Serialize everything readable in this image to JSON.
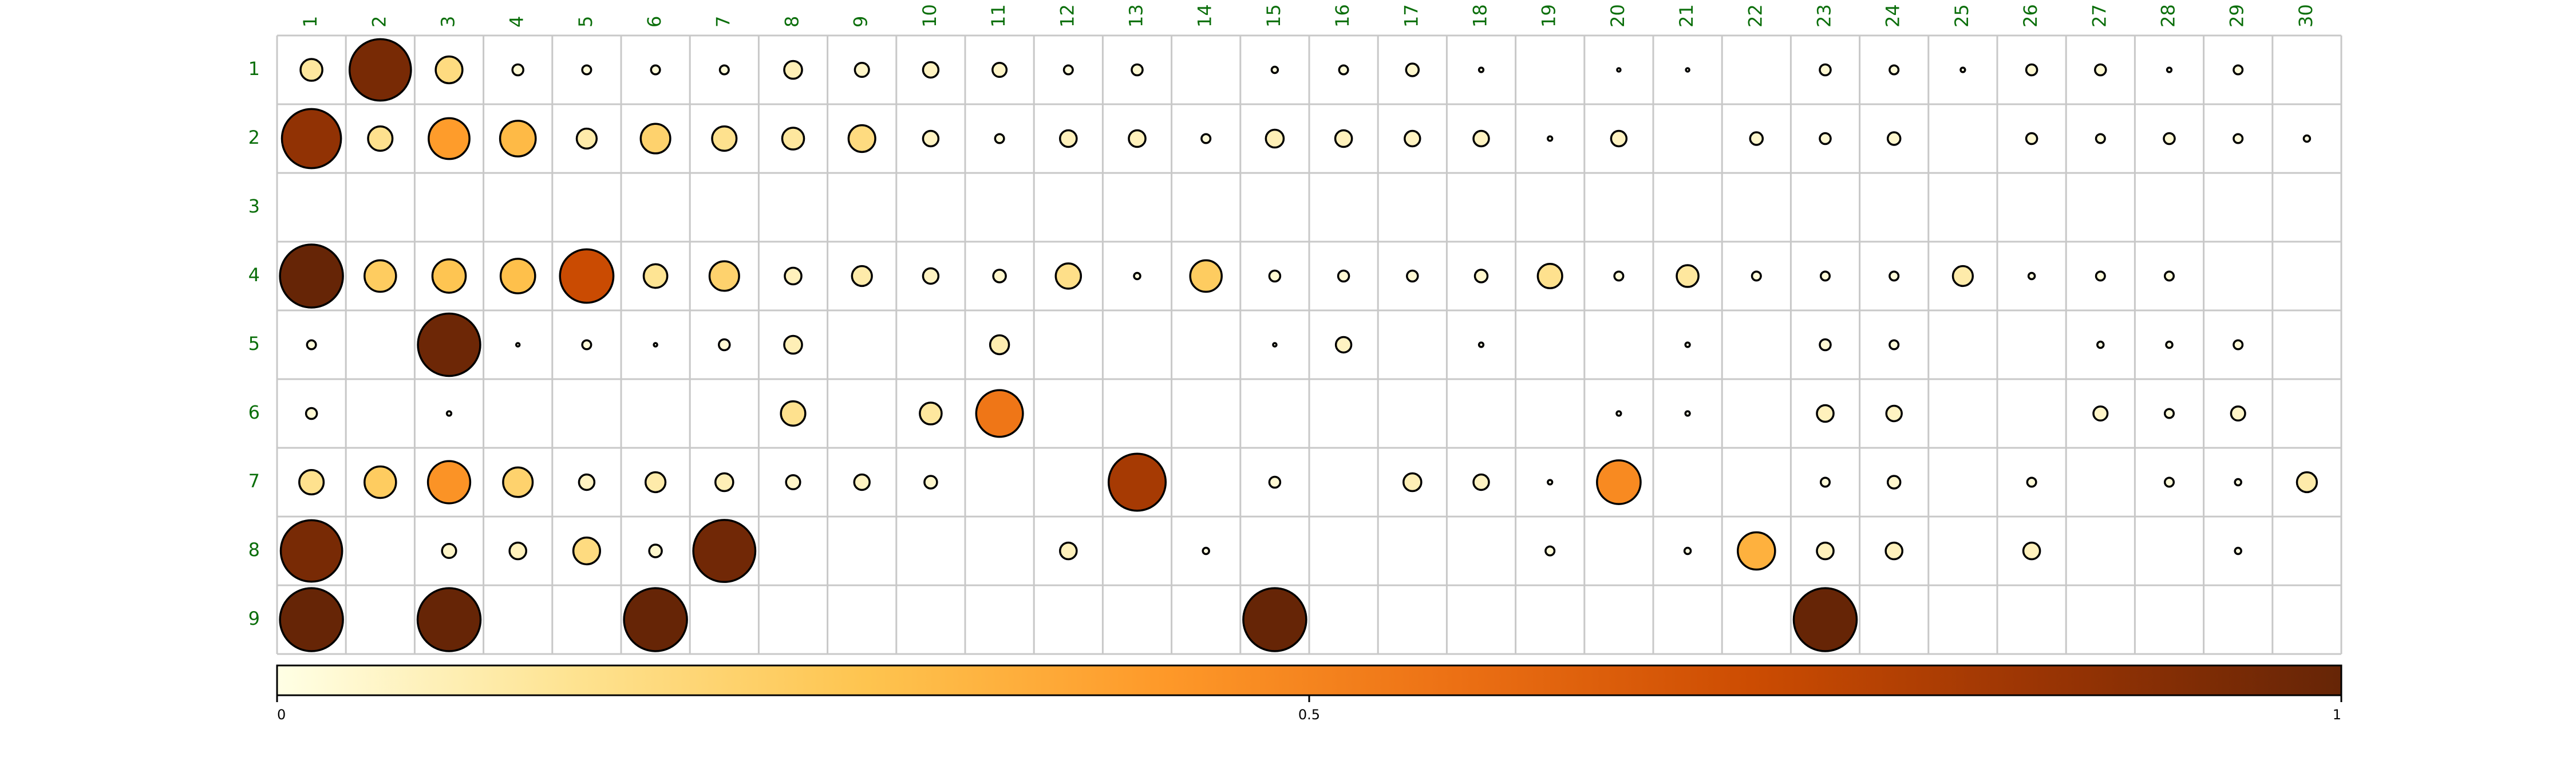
{
  "chart_data": {
    "type": "heatmap",
    "x_labels": [
      "1",
      "2",
      "3",
      "4",
      "5",
      "6",
      "7",
      "8",
      "9",
      "10",
      "11",
      "12",
      "13",
      "14",
      "15",
      "16",
      "17",
      "18",
      "19",
      "20",
      "21",
      "22",
      "23",
      "24",
      "25",
      "26",
      "27",
      "28",
      "29",
      "30"
    ],
    "y_labels": [
      "1",
      "2",
      "3",
      "4",
      "5",
      "6",
      "7",
      "8",
      "9"
    ],
    "values": [
      [
        0.12,
        0.95,
        0.18,
        0.03,
        0.02,
        0.02,
        0.02,
        0.08,
        0.05,
        0.06,
        0.05,
        0.02,
        0.03,
        null,
        0.01,
        0.02,
        0.04,
        0.005,
        null,
        0.003,
        0.003,
        null,
        0.03,
        0.02,
        0.005,
        0.03,
        0.03,
        0.005,
        0.02,
        null
      ],
      [
        0.88,
        0.15,
        0.42,
        0.32,
        0.1,
        0.22,
        0.15,
        0.12,
        0.18,
        0.06,
        0.02,
        0.07,
        0.07,
        0.02,
        0.08,
        0.07,
        0.06,
        0.06,
        0.005,
        0.06,
        null,
        0.04,
        0.03,
        0.04,
        null,
        0.03,
        0.02,
        0.03,
        0.02,
        0.01
      ],
      [
        null,
        null,
        null,
        null,
        null,
        null,
        null,
        null,
        null,
        null,
        null,
        null,
        null,
        null,
        null,
        null,
        null,
        null,
        null,
        null,
        null,
        null,
        null,
        null,
        null,
        null,
        null,
        null,
        null,
        null
      ],
      [
        1.0,
        0.25,
        0.28,
        0.3,
        0.72,
        0.14,
        0.22,
        0.07,
        0.1,
        0.06,
        0.04,
        0.16,
        0.01,
        0.25,
        0.03,
        0.03,
        0.03,
        0.04,
        0.15,
        0.02,
        0.12,
        0.02,
        0.02,
        0.02,
        0.1,
        0.01,
        0.02,
        0.02,
        null,
        null
      ],
      [
        0.02,
        null,
        0.98,
        0.003,
        0.02,
        0.003,
        0.03,
        0.08,
        null,
        null,
        0.09,
        null,
        null,
        null,
        0.003,
        0.06,
        null,
        0.005,
        null,
        null,
        0.005,
        null,
        0.03,
        0.02,
        null,
        null,
        0.01,
        0.01,
        0.02,
        null
      ],
      [
        0.03,
        null,
        0.005,
        null,
        null,
        null,
        null,
        0.15,
        null,
        0.12,
        0.55,
        null,
        null,
        null,
        null,
        null,
        null,
        null,
        null,
        0.005,
        0.005,
        null,
        0.07,
        0.06,
        null,
        null,
        0.05,
        0.02,
        0.05,
        null
      ],
      [
        0.15,
        0.25,
        0.45,
        0.22,
        0.06,
        0.1,
        0.08,
        0.05,
        0.06,
        0.04,
        null,
        null,
        0.82,
        null,
        0.03,
        null,
        0.08,
        0.06,
        0.005,
        0.48,
        null,
        null,
        0.02,
        0.04,
        null,
        0.02,
        null,
        0.02,
        0.01,
        0.1
      ],
      [
        0.95,
        null,
        0.05,
        0.07,
        0.18,
        0.04,
        0.97,
        null,
        null,
        null,
        null,
        0.07,
        null,
        0.01,
        null,
        null,
        null,
        null,
        0.02,
        null,
        0.01,
        0.35,
        0.07,
        0.07,
        null,
        0.07,
        null,
        null,
        0.01,
        null
      ],
      [
        1.0,
        null,
        1.0,
        null,
        null,
        1.0,
        null,
        null,
        null,
        null,
        null,
        null,
        null,
        null,
        1.0,
        null,
        null,
        null,
        null,
        null,
        null,
        null,
        1.0,
        null,
        null,
        null,
        null,
        null,
        null,
        null
      ]
    ],
    "colorbar": {
      "min": 0,
      "max": 1,
      "tick_labels": [
        "0",
        "0.5",
        "1"
      ],
      "tick_values": [
        0,
        0.5,
        1
      ],
      "colors": [
        "#ffffe5",
        "#fee391",
        "#fec44f",
        "#fe9929",
        "#ec7014",
        "#cc4c02",
        "#993404",
        "#662506"
      ]
    },
    "grid": true,
    "legend": "bottom"
  }
}
